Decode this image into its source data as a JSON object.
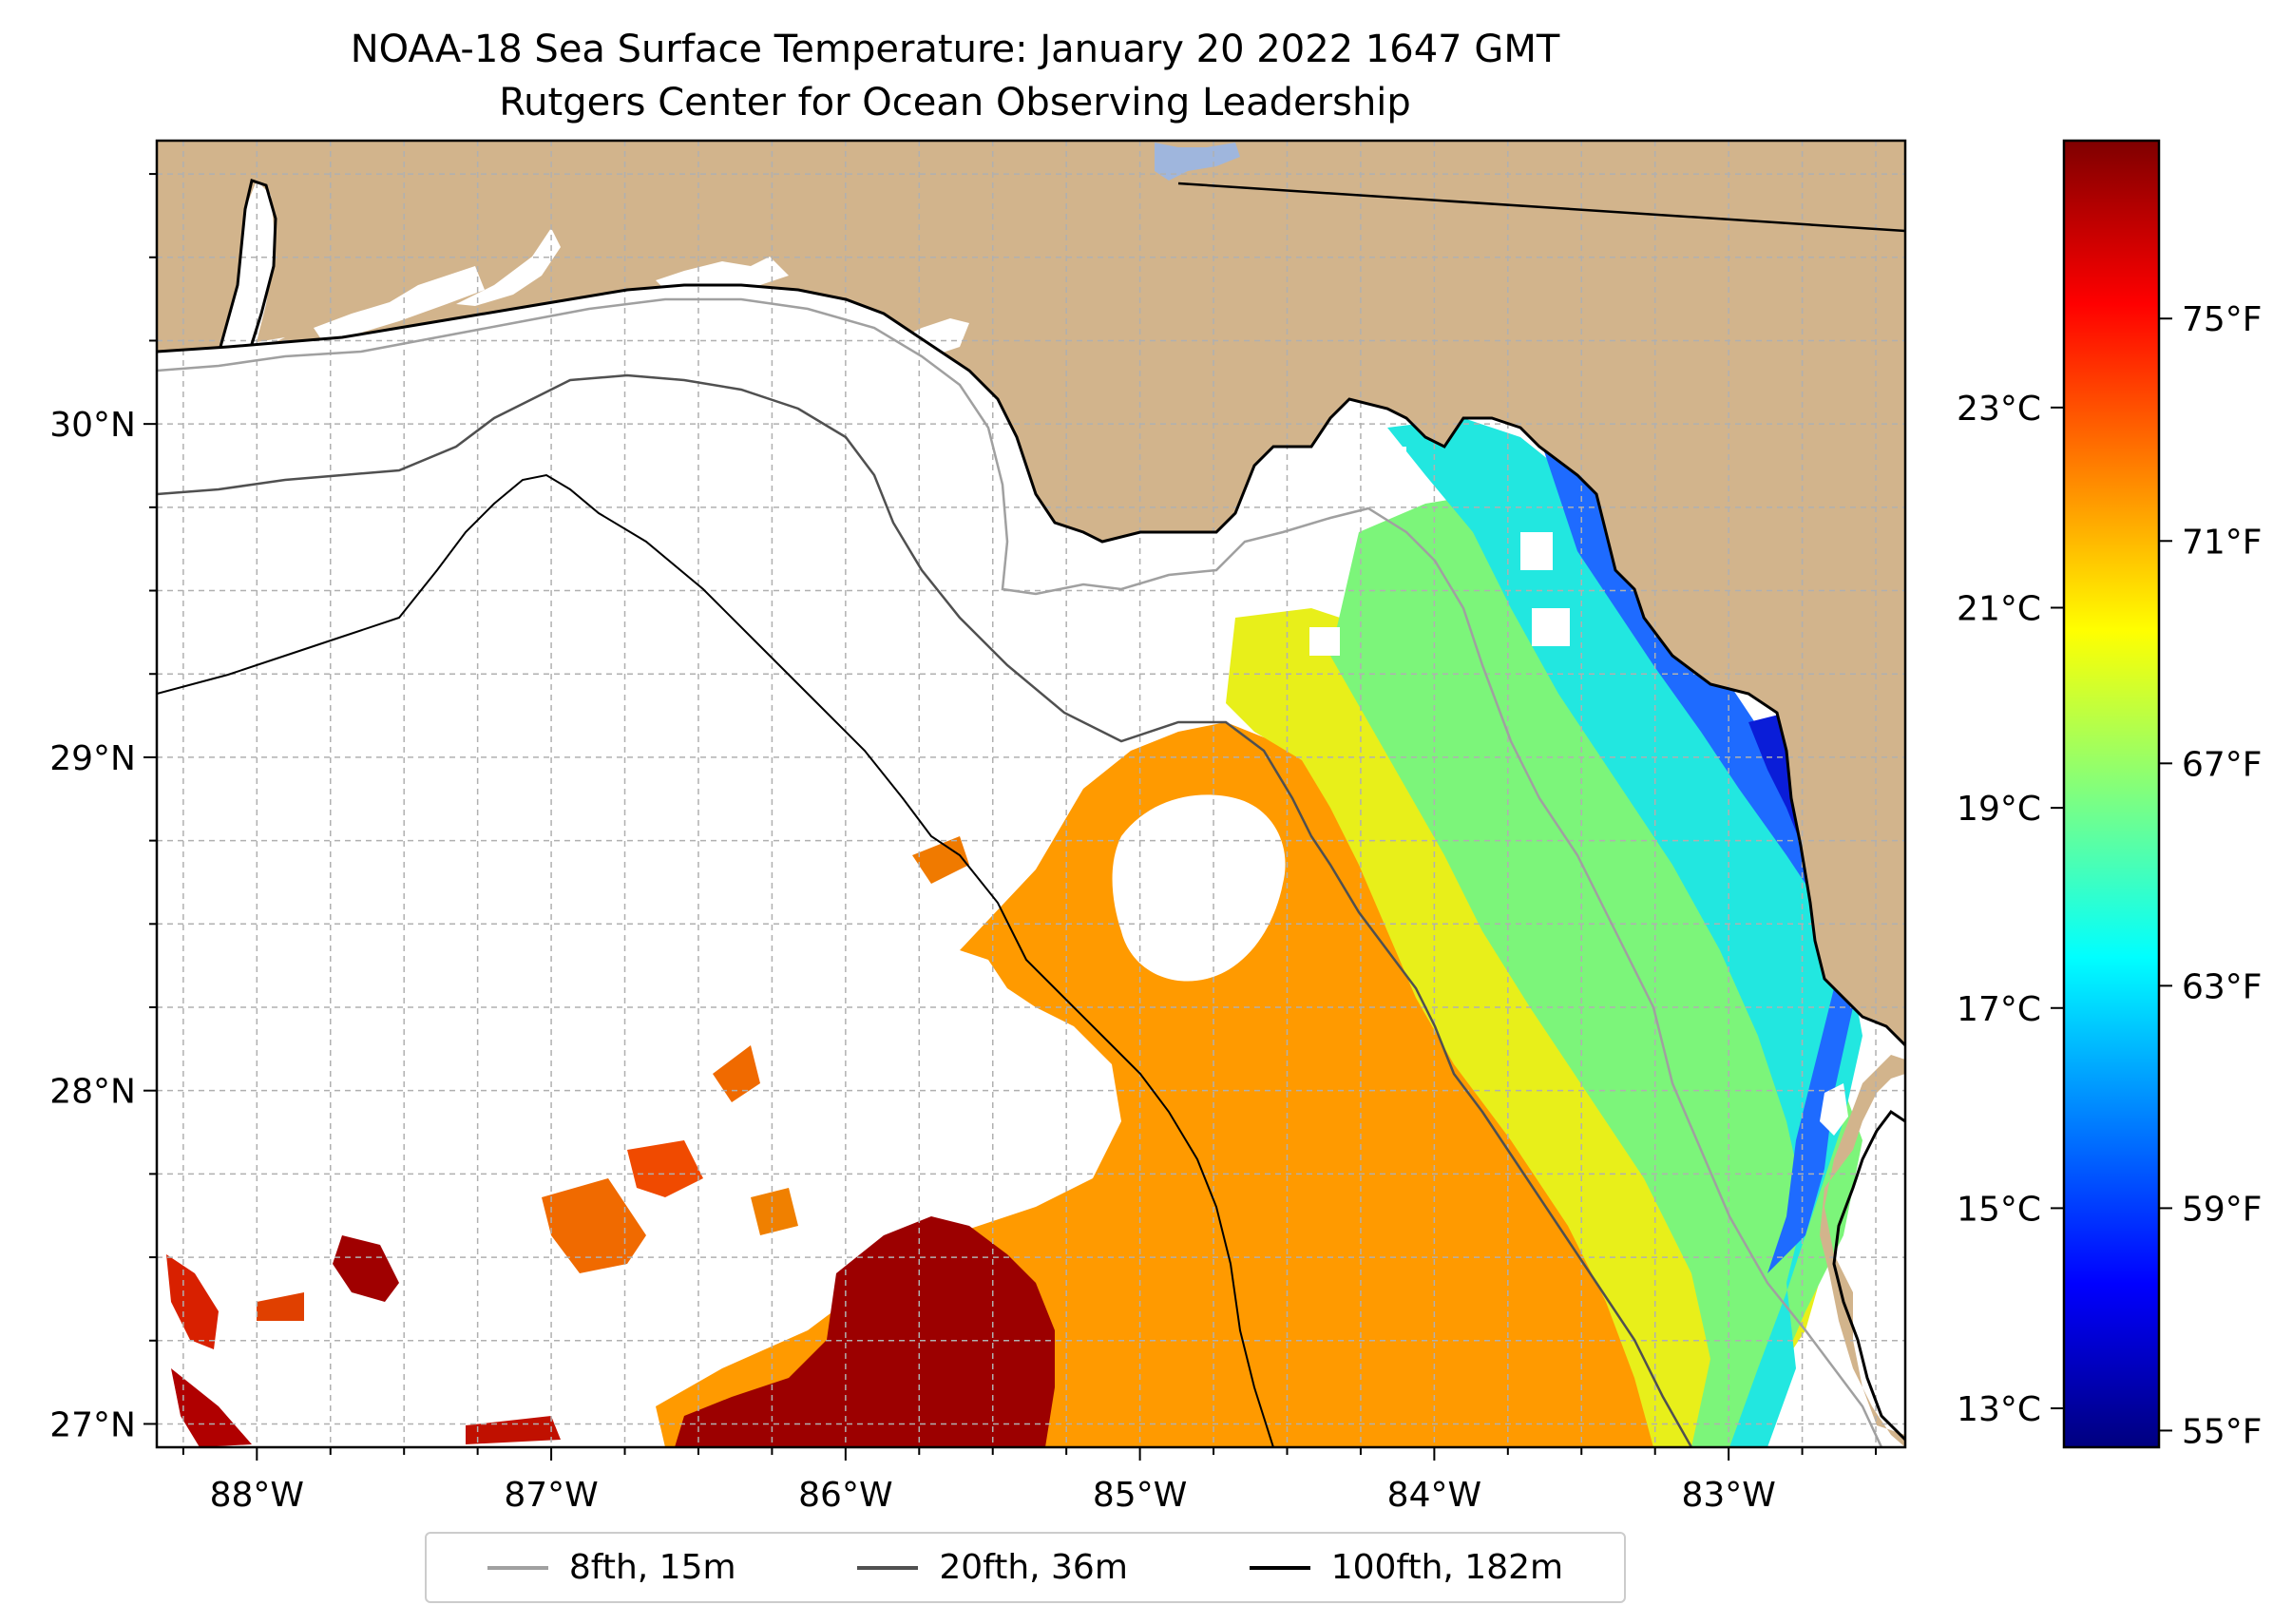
{
  "title": {
    "line1": "NOAA-18 Sea Surface Temperature: January 20 2022 1647 GMT",
    "line2": "Rutgers Center for Ocean Observing Leadership"
  },
  "map": {
    "lon_range": [
      -88.34,
      -82.4
    ],
    "lat_range": [
      26.93,
      30.85
    ],
    "lon_ticks": [
      {
        "value": -88,
        "label": "88°W"
      },
      {
        "value": -87,
        "label": "87°W"
      },
      {
        "value": -86,
        "label": "86°W"
      },
      {
        "value": -85,
        "label": "85°W"
      },
      {
        "value": -84,
        "label": "84°W"
      },
      {
        "value": -83,
        "label": "83°W"
      }
    ],
    "lat_ticks": [
      {
        "value": 27,
        "label": "27°N"
      },
      {
        "value": 28,
        "label": "28°N"
      },
      {
        "value": 29,
        "label": "29°N"
      },
      {
        "value": 30,
        "label": "30°N"
      }
    ],
    "grid_step_deg": 0.25,
    "colors": {
      "land": "#d2b48c",
      "ocean": "#ffffff",
      "grid": "#b0b0b0",
      "lake": "#9fb6dd"
    }
  },
  "colorbar": {
    "celsius_ticks": [
      {
        "value": 13,
        "label": "13°C"
      },
      {
        "value": 15,
        "label": "15°C"
      },
      {
        "value": 17,
        "label": "17°C"
      },
      {
        "value": 19,
        "label": "19°C"
      },
      {
        "value": 21,
        "label": "21°C"
      },
      {
        "value": 23,
        "label": "23°C"
      }
    ],
    "fahrenheit_ticks": [
      {
        "value": 55,
        "label": "55°F"
      },
      {
        "value": 59,
        "label": "59°F"
      },
      {
        "value": 63,
        "label": "63°F"
      },
      {
        "value": 67,
        "label": "67°F"
      },
      {
        "value": 71,
        "label": "71°F"
      },
      {
        "value": 75,
        "label": "75°F"
      }
    ],
    "range_f": [
      54.7,
      78.2
    ],
    "colormap": [
      "#00007f",
      "#0000ff",
      "#007fff",
      "#00ffff",
      "#7fff7f",
      "#ffff00",
      "#ff7f00",
      "#ff0000",
      "#7f0000"
    ]
  },
  "legend": {
    "items": [
      {
        "label": "8fth, 15m",
        "color": "#a0a0a0"
      },
      {
        "label": "20fth, 36m",
        "color": "#505050"
      },
      {
        "label": "100fth, 182m",
        "color": "#000000"
      }
    ]
  }
}
